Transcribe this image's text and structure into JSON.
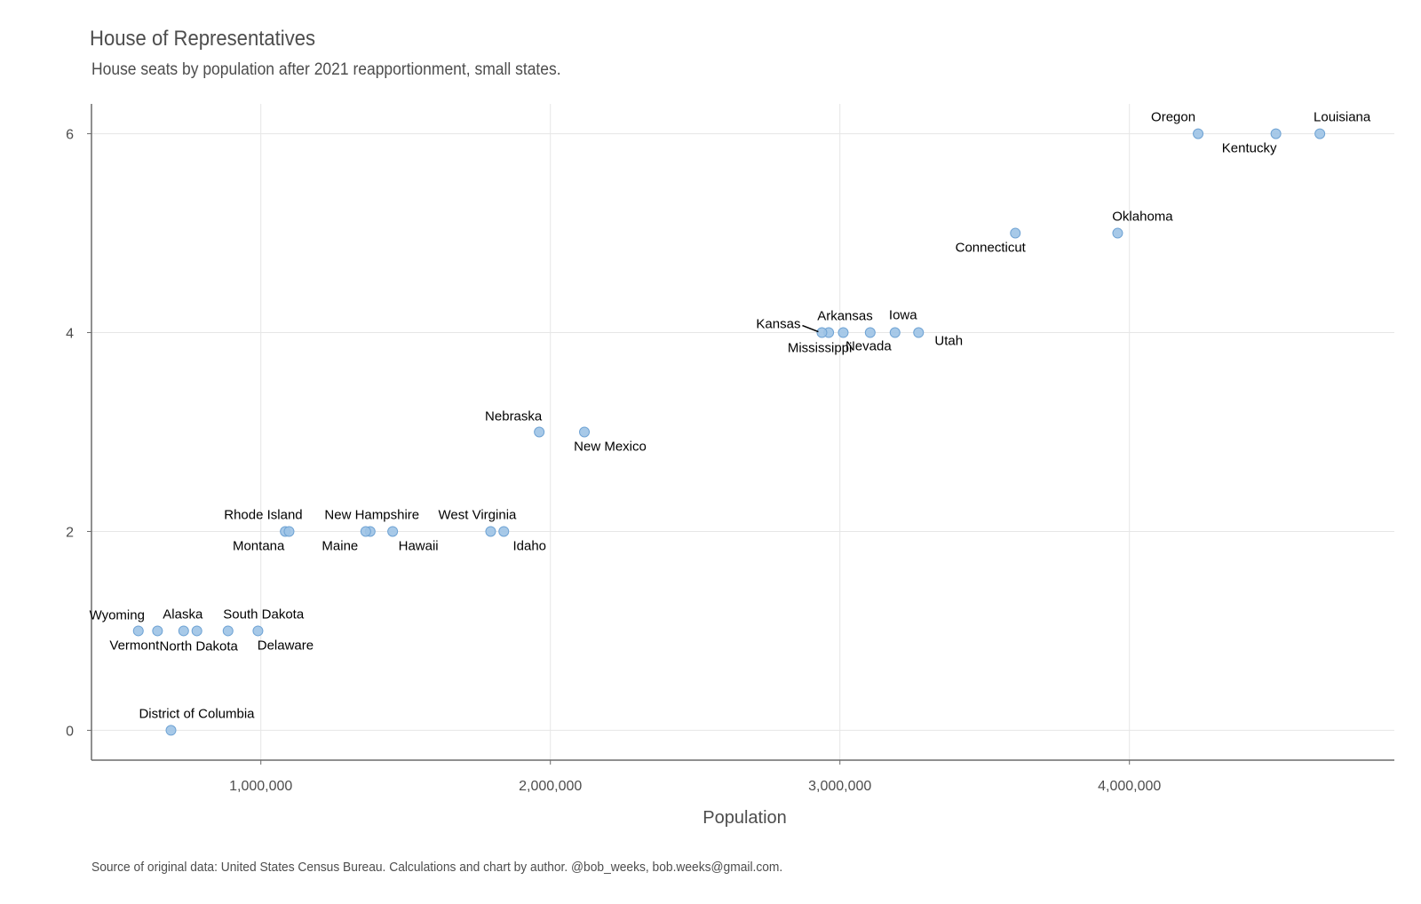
{
  "chart_data": {
    "type": "scatter",
    "title": "House of Representatives",
    "subtitle": "House seats by population after 2021 reapportionment, small states.",
    "xlabel": "Population",
    "ylabel": "",
    "caption": "Source of original data: United States Census Bureau. Calculations and chart by author. @bob_weeks, bob.weeks@gmail.com.",
    "xlim": [
      415000,
      4915000
    ],
    "ylim": [
      -0.3,
      6.3
    ],
    "x_ticks": [
      1000000,
      2000000,
      3000000,
      4000000
    ],
    "x_tick_labels": [
      "1,000,000",
      "2,000,000",
      "3,000,000",
      "4,000,000"
    ],
    "y_ticks": [
      0,
      2,
      4,
      6
    ],
    "y_tick_labels": [
      "0",
      "2",
      "4",
      "6"
    ],
    "grid": true,
    "point_color": "#9dc3e6",
    "point_edge_color": "#6fa3d4",
    "points": [
      {
        "name": "Louisiana",
        "x": 4657757,
        "y": 6,
        "label_pos": "above-right"
      },
      {
        "name": "Kentucky",
        "x": 4505836,
        "y": 6,
        "label_pos": "below-left"
      },
      {
        "name": "Oregon",
        "x": 4237256,
        "y": 6,
        "label_pos": "above-left"
      },
      {
        "name": "Oklahoma",
        "x": 3959353,
        "y": 5,
        "label_pos": "above-right"
      },
      {
        "name": "Connecticut",
        "x": 3605944,
        "y": 5,
        "label_pos": "below-left"
      },
      {
        "name": "Utah",
        "x": 3271616,
        "y": 4,
        "label_pos": "below-right"
      },
      {
        "name": "Iowa",
        "x": 3190369,
        "y": 4,
        "label_pos": "above"
      },
      {
        "name": "Nevada",
        "x": 3104614,
        "y": 4,
        "label_pos": "below-right"
      },
      {
        "name": "Arkansas",
        "x": 3011524,
        "y": 4,
        "label_pos": "above"
      },
      {
        "name": "Mississippi",
        "x": 2961279,
        "y": 4,
        "label_pos": "below-left"
      },
      {
        "name": "Kansas",
        "x": 2937880,
        "y": 4,
        "label_pos": "left-leader"
      },
      {
        "name": "New Mexico",
        "x": 2117522,
        "y": 3,
        "label_pos": "below-right"
      },
      {
        "name": "Nebraska",
        "x": 1961504,
        "y": 3,
        "label_pos": "above-left"
      },
      {
        "name": "Idaho",
        "x": 1839106,
        "y": 2,
        "label_pos": "below-right"
      },
      {
        "name": "West Virginia",
        "x": 1793716,
        "y": 2,
        "label_pos": "above-left"
      },
      {
        "name": "Hawaii",
        "x": 1455271,
        "y": 2,
        "label_pos": "below-right"
      },
      {
        "name": "New Hampshire",
        "x": 1377529,
        "y": 2,
        "label_pos": "above"
      },
      {
        "name": "Maine",
        "x": 1362359,
        "y": 2,
        "label_pos": "below-left"
      },
      {
        "name": "Montana",
        "x": 1084225,
        "y": 2,
        "label_pos": "below-left"
      },
      {
        "name": "Rhode Island",
        "x": 1097379,
        "y": 2,
        "label_pos": "above-left"
      },
      {
        "name": "Delaware",
        "x": 989948,
        "y": 1,
        "label_pos": "below-right"
      },
      {
        "name": "South Dakota",
        "x": 886667,
        "y": 1,
        "label_pos": "above-right"
      },
      {
        "name": "North Dakota",
        "x": 779094,
        "y": 1,
        "label_pos": "below"
      },
      {
        "name": "Alaska",
        "x": 733391,
        "y": 1,
        "label_pos": "above"
      },
      {
        "name": "District of Columbia",
        "x": 689545,
        "y": 0,
        "label_pos": "above-right"
      },
      {
        "name": "Vermont",
        "x": 643077,
        "y": 1,
        "label_pos": "below-left"
      },
      {
        "name": "Wyoming",
        "x": 576851,
        "y": 1,
        "label_pos": "above-left"
      }
    ]
  }
}
